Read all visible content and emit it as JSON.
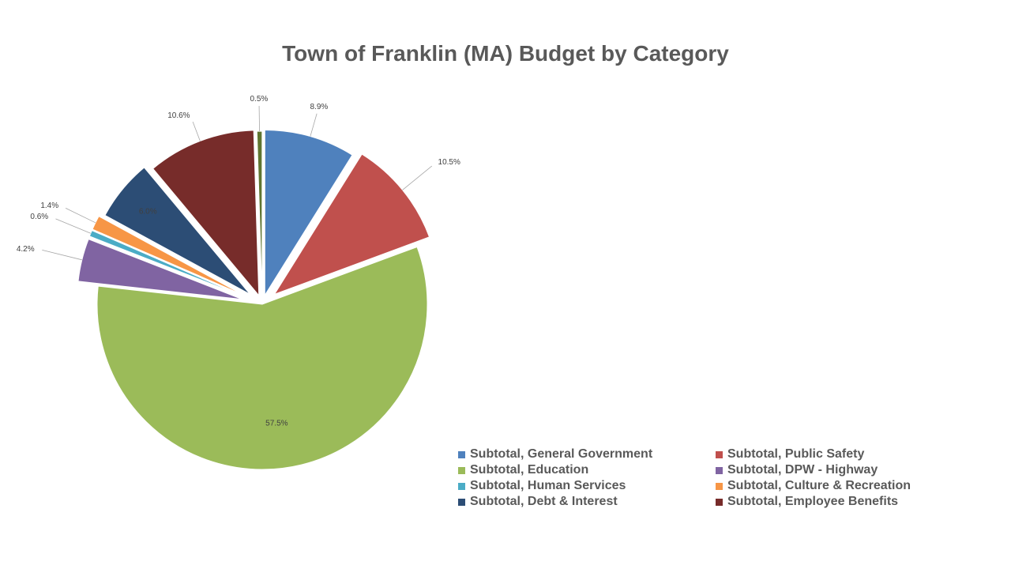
{
  "chart_data": {
    "type": "pie",
    "title": "Town of Franklin (MA) Budget by Category",
    "categories": [
      "Subtotal, General Government",
      "Subtotal, Public Safety",
      "Subtotal, Education",
      "Subtotal, DPW - Highway",
      "Subtotal, Human Services",
      "Subtotal, Culture & Recreation",
      "Subtotal, Debt & Interest",
      "Subtotal, Employee Benefits",
      ""
    ],
    "values": [
      8.9,
      10.5,
      57.5,
      4.2,
      0.6,
      1.4,
      6.0,
      10.6,
      0.5
    ],
    "data_labels": [
      "8.9%",
      "10.5%",
      "57.5%",
      "4.2%",
      "0.6%",
      "1.4%",
      "6.0%",
      "10.6%",
      "0.5%"
    ],
    "colors": [
      "#4F81BD",
      "#C0504D",
      "#9BBB59",
      "#8064A2",
      "#4BACC6",
      "#F79646",
      "#2C4D75",
      "#772C2A",
      "#5F7530"
    ],
    "legend_position": "bottom-right",
    "exploded": true
  }
}
